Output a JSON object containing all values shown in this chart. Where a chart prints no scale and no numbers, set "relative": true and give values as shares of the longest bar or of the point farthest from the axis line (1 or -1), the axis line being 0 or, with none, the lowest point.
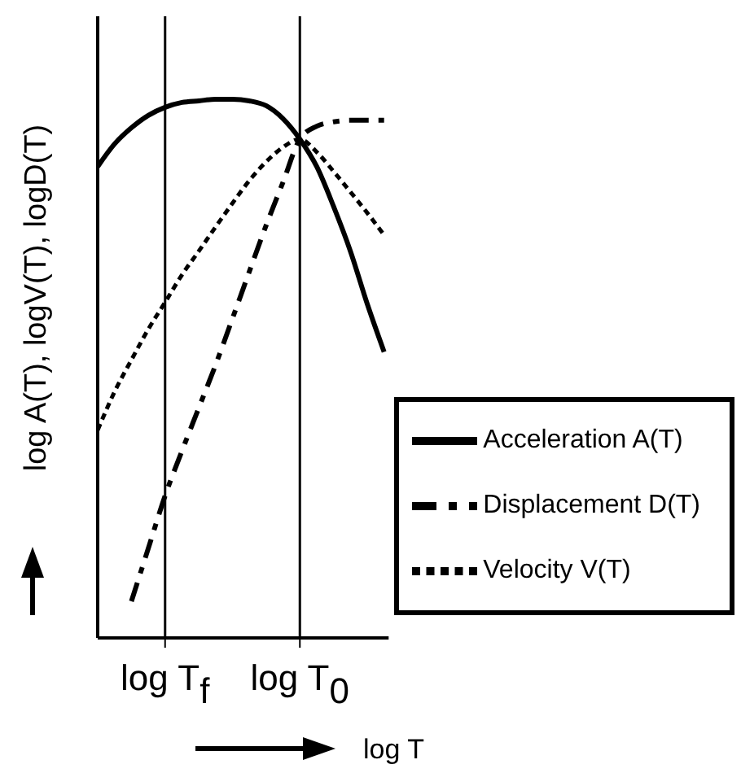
{
  "chart_data": {
    "type": "line",
    "relative": true,
    "xlabel": "log T",
    "ylabel": "log A(T), logV(T), logD(T)",
    "categories": [
      null,
      null,
      null,
      null,
      "log T$_{f}$",
      null,
      null,
      null,
      null,
      null,
      null,
      null,
      "log T$_{0}$",
      null,
      null,
      null,
      null,
      null
    ],
    "series": [
      {
        "name": "Acceleration  A(T)",
        "color": "#000000",
        "line_style": "solid",
        "values": [
          0.875,
          0.917,
          0.947,
          0.97,
          0.985,
          0.994,
          0.997,
          1,
          1,
          0.997,
          0.988,
          0.964,
          0.926,
          0.875,
          0.801,
          0.718,
          0.62,
          0.531
        ]
      },
      {
        "name": "Velocity  V(T)",
        "color": "#000000",
        "line_style": "dotted",
        "values": [
          0.386,
          0.457,
          0.516,
          0.573,
          0.623,
          0.674,
          0.718,
          0.763,
          0.807,
          0.849,
          0.884,
          0.911,
          0.926,
          0.902,
          0.866,
          0.828,
          0.789,
          0.748
        ]
      },
      {
        "name": "Displacement  D(T)",
        "color": "#000000",
        "line_style": "dashdot",
        "values": [
          null,
          null,
          0.068,
          0.166,
          0.264,
          0.347,
          0.427,
          0.507,
          0.593,
          0.68,
          0.766,
          0.846,
          0.926,
          0.95,
          0.958,
          0.961,
          0.961,
          0.961
        ]
      }
    ],
    "ref_lines": [
      {
        "axis": "x",
        "value": "log T$_{f}$",
        "label": null,
        "color": "#000000"
      },
      {
        "axis": "x",
        "value": "log T$_{0}$",
        "label": null,
        "color": "#000000"
      }
    ],
    "legend": "bottom right",
    "grid": false,
    "marker": "none"
  }
}
